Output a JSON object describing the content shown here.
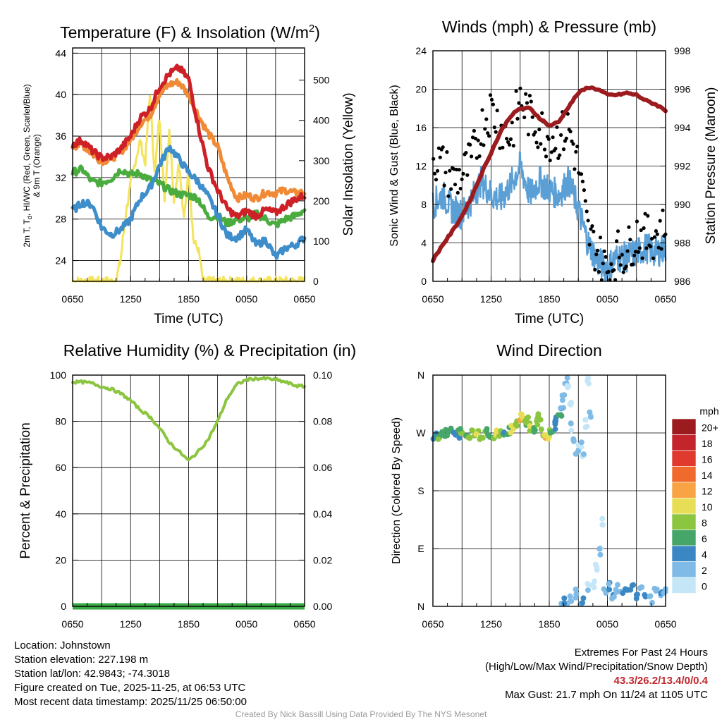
{
  "colors": {
    "red": "#cd2027",
    "orange": "#f08a36",
    "green": "#4aac3e",
    "blue": "#3d8ecb",
    "yellow": "#f4e35c",
    "maroon": "#9b1b1f",
    "black": "#000000",
    "sonic_blue": "#5a9fd6",
    "rh_green": "#8cc540",
    "precip_green": "#3aa845"
  },
  "time_ticks": [
    "0650",
    "1250",
    "1850",
    "0050",
    "0650"
  ],
  "charts": [
    {
      "id": "temperature",
      "title_main": "Temperature (F) & Insolation (W/m",
      "title_sup": "2",
      "title_end": ")",
      "ylabel_left_lines": [
        "2m T, T",
        "d",
        ", HI/WC (Red, Green, Scarlet/Blue)",
        "& 9m T (Orange)"
      ],
      "ylabel_right": "Solar Insolation (Yellow)",
      "xlabel": "Time (UTC)",
      "left_ticks": [
        "24",
        "28",
        "32",
        "36",
        "40",
        "44"
      ],
      "right_ticks": [
        "0",
        "100",
        "200",
        "300",
        "400",
        "500"
      ]
    },
    {
      "id": "winds",
      "title": "Winds (mph) & Pressure (mb)",
      "ylabel_left": "Sonic Wind & Gust (Blue, Black)",
      "ylabel_right": "Station Pressure (Maroon)",
      "xlabel": "Time (UTC)",
      "left_ticks": [
        "0",
        "4",
        "8",
        "12",
        "16",
        "20",
        "24"
      ],
      "right_ticks": [
        "986",
        "988",
        "990",
        "992",
        "994",
        "996",
        "998"
      ]
    },
    {
      "id": "humidity",
      "title": "Relative Humidity (%) & Precipitation (in)",
      "ylabel_left": "Percent & Precipitation",
      "left_ticks": [
        "0",
        "20",
        "40",
        "60",
        "80",
        "100"
      ],
      "right_ticks": [
        "0.00",
        "0.02",
        "0.04",
        "0.06",
        "0.08",
        "0.10"
      ]
    },
    {
      "id": "direction",
      "title": "Wind Direction",
      "ylabel_left": "Direction (Colored By Speed)",
      "dir_ticks": [
        "N",
        "E",
        "S",
        "W",
        "N"
      ],
      "legend_title": "mph",
      "legend_labels": [
        "20+",
        "18",
        "16",
        "14",
        "12",
        "10",
        "8",
        "6",
        "4",
        "2",
        "0"
      ],
      "legend_colors": [
        "#9b1b1f",
        "#c4242b",
        "#e0392d",
        "#f06a2e",
        "#f9a444",
        "#e8de55",
        "#8cc540",
        "#46a66a",
        "#3a87c4",
        "#7fbbe6",
        "#c5e6f7"
      ]
    }
  ],
  "chart_data": [
    {
      "type": "line",
      "title": "Temperature (F) & Insolation (W/m2)",
      "xlabel": "Time (UTC)",
      "ylabel": "2m T, Td, HI/WC (Red, Green, Scarlet/Blue) & 9m T (Orange)",
      "ylabel_right": "Solar Insolation (Yellow)",
      "x_hours": [
        0,
        1,
        2,
        3,
        4,
        5,
        6,
        7,
        8,
        9,
        10,
        11,
        12,
        13,
        14,
        15,
        16,
        17,
        18,
        19,
        20,
        21,
        22,
        23,
        24
      ],
      "ylim": [
        22,
        44.5
      ],
      "ylim_right": [
        0,
        580
      ],
      "series": [
        {
          "name": "2m T",
          "color": "red",
          "values": [
            35.2,
            35.6,
            34.6,
            33.9,
            34.0,
            34.8,
            36.0,
            37.8,
            38.6,
            40.8,
            42.0,
            42.6,
            41.5,
            37.0,
            33.0,
            30.8,
            29.0,
            28.2,
            28.8,
            28.3,
            28.9,
            28.6,
            29.3,
            29.9,
            30.3
          ]
        },
        {
          "name": "9m T",
          "color": "orange",
          "values": [
            35.0,
            35.2,
            34.3,
            33.6,
            33.8,
            34.5,
            35.6,
            37.2,
            38.0,
            40.0,
            41.0,
            41.2,
            40.0,
            38.0,
            36.3,
            35.0,
            32.0,
            30.0,
            30.3,
            30.0,
            30.6,
            30.5,
            30.8,
            30.5,
            30.6
          ]
        },
        {
          "name": "Td",
          "color": "green",
          "values": [
            32.5,
            32.8,
            31.6,
            31.5,
            31.9,
            32.8,
            32.3,
            32.4,
            31.8,
            31.4,
            30.8,
            30.4,
            30.3,
            30.0,
            28.2,
            28.3,
            27.6,
            28.0,
            28.0,
            28.5,
            28.0,
            27.4,
            28.0,
            28.3,
            28.9
          ]
        },
        {
          "name": "HI/WC",
          "color": "blue",
          "values": [
            28.8,
            29.6,
            29.4,
            27.2,
            26.5,
            27.0,
            28.0,
            30.0,
            31.0,
            33.2,
            35.0,
            33.8,
            32.5,
            31.6,
            30.2,
            28.4,
            26.4,
            26.2,
            27.0,
            25.5,
            26.0,
            24.3,
            25.2,
            25.5,
            26.2
          ]
        },
        {
          "name": "Solar Insolation",
          "color": "yellow",
          "axis": "right",
          "x_hours": [
            0,
            2,
            3.5,
            4.5,
            5,
            5.5,
            6,
            6.5,
            7,
            7.5,
            8,
            8.5,
            9,
            9.5,
            10,
            10.5,
            11,
            11.5,
            12,
            12.5,
            13,
            13.5,
            14,
            16,
            20,
            24
          ],
          "values": [
            0,
            0,
            0,
            0,
            60,
            170,
            240,
            300,
            350,
            290,
            470,
            260,
            420,
            200,
            380,
            200,
            300,
            150,
            280,
            100,
            80,
            0,
            0,
            0,
            0,
            0
          ]
        }
      ]
    },
    {
      "type": "line",
      "title": "Winds (mph) & Pressure (mb)",
      "xlabel": "Time (UTC)",
      "ylabel": "Sonic Wind & Gust (Blue, Black)",
      "ylabel_right": "Station Pressure (Maroon)",
      "x_hours": [
        0,
        1,
        2,
        3,
        4,
        5,
        6,
        7,
        8,
        9,
        10,
        11,
        12,
        13,
        14,
        15,
        16,
        17,
        18,
        19,
        20,
        21,
        22,
        23,
        24
      ],
      "ylim": [
        0,
        24
      ],
      "ylim_right": [
        986,
        998
      ],
      "series": [
        {
          "name": "Sonic Wind",
          "color": "sonic_blue",
          "values": [
            8.0,
            9.0,
            7.5,
            7.0,
            8.5,
            10.5,
            9.0,
            8.5,
            10.0,
            12.0,
            9.0,
            10.5,
            9.5,
            9.0,
            10.5,
            7.5,
            4.0,
            2.0,
            1.5,
            2.5,
            2.5,
            3.0,
            3.5,
            3.0,
            3.5
          ]
        },
        {
          "name": "Gust",
          "color": "black",
          "type": "scatter",
          "values": [
            13.0,
            12.0,
            10.5,
            11.0,
            12.5,
            16.0,
            18.0,
            16.0,
            15.0,
            19.0,
            17.0,
            16.0,
            15.0,
            15.0,
            16.0,
            12.0,
            5.0,
            3.0,
            1.0,
            3.0,
            3.0,
            5.0,
            4.5,
            5.0,
            5.5
          ]
        },
        {
          "name": "Station Pressure",
          "color": "maroon",
          "axis": "right",
          "values": [
            987.1,
            987.9,
            988.6,
            989.4,
            990.4,
            991.6,
            992.7,
            993.8,
            994.6,
            995.0,
            995.0,
            994.5,
            994.1,
            994.3,
            995.1,
            995.8,
            996.1,
            996.0,
            995.7,
            995.7,
            995.8,
            995.7,
            995.4,
            995.2,
            994.9
          ]
        }
      ]
    },
    {
      "type": "line",
      "title": "Relative Humidity (%) & Precipitation (in)",
      "xlabel": "",
      "ylabel": "Percent & Precipitation",
      "x_hours": [
        0,
        1,
        2,
        3,
        4,
        5,
        6,
        7,
        8,
        9,
        10,
        11,
        12,
        13,
        14,
        15,
        16,
        17,
        18,
        19,
        20,
        21,
        22,
        23,
        24
      ],
      "ylim": [
        0,
        100
      ],
      "ylim_right": [
        0,
        0.1
      ],
      "series": [
        {
          "name": "Relative Humidity",
          "color": "rh_green",
          "values": [
            97,
            97,
            96.5,
            95,
            94,
            92,
            89,
            85,
            82,
            77,
            71,
            67,
            63,
            67,
            72,
            80,
            90,
            96,
            98,
            98.5,
            98.5,
            98,
            97,
            95.5,
            95
          ]
        },
        {
          "name": "Precipitation",
          "color": "precip_green",
          "axis": "right",
          "values": [
            0,
            0,
            0,
            0,
            0,
            0,
            0,
            0,
            0,
            0,
            0,
            0,
            0,
            0,
            0,
            0,
            0,
            0,
            0,
            0,
            0,
            0,
            0,
            0,
            0
          ]
        }
      ]
    },
    {
      "type": "scatter",
      "title": "Wind Direction",
      "ylabel": "Direction (Colored By Speed)",
      "ylim": [
        0,
        360
      ],
      "y_ticks": [
        "N",
        "E",
        "S",
        "W",
        "N"
      ],
      "colorbar": {
        "label": "mph",
        "levels": [
          0,
          2,
          4,
          6,
          8,
          10,
          12,
          14,
          16,
          18,
          20
        ]
      },
      "points": [
        {
          "t": 0.2,
          "d": 265,
          "s": 6
        },
        {
          "t": 0.6,
          "d": 264,
          "s": 8
        },
        {
          "t": 1.0,
          "d": 266,
          "s": 7
        },
        {
          "t": 1.4,
          "d": 270,
          "s": 6
        },
        {
          "t": 1.8,
          "d": 275,
          "s": 7
        },
        {
          "t": 2.2,
          "d": 272,
          "s": 5
        },
        {
          "t": 2.6,
          "d": 268,
          "s": 6
        },
        {
          "t": 3.0,
          "d": 270,
          "s": 8
        },
        {
          "t": 3.4,
          "d": 265,
          "s": 7
        },
        {
          "t": 3.8,
          "d": 260,
          "s": 9
        },
        {
          "t": 4.2,
          "d": 268,
          "s": 8
        },
        {
          "t": 4.6,
          "d": 270,
          "s": 10
        },
        {
          "t": 5.0,
          "d": 266,
          "s": 9
        },
        {
          "t": 5.4,
          "d": 270,
          "s": 8
        },
        {
          "t": 5.8,
          "d": 264,
          "s": 7
        },
        {
          "t": 6.2,
          "d": 262,
          "s": 8
        },
        {
          "t": 6.6,
          "d": 270,
          "s": 10
        },
        {
          "t": 7.0,
          "d": 268,
          "s": 9
        },
        {
          "t": 7.4,
          "d": 265,
          "s": 6
        },
        {
          "t": 7.8,
          "d": 272,
          "s": 7
        },
        {
          "t": 8.2,
          "d": 275,
          "s": 11
        },
        {
          "t": 8.6,
          "d": 282,
          "s": 9
        },
        {
          "t": 9.0,
          "d": 290,
          "s": 12
        },
        {
          "t": 9.2,
          "d": 298,
          "s": 11
        },
        {
          "t": 9.5,
          "d": 285,
          "s": 8
        },
        {
          "t": 9.8,
          "d": 292,
          "s": 9
        },
        {
          "t": 10.1,
          "d": 280,
          "s": 10
        },
        {
          "t": 10.4,
          "d": 272,
          "s": 7
        },
        {
          "t": 10.7,
          "d": 286,
          "s": 9
        },
        {
          "t": 11.0,
          "d": 295,
          "s": 8
        },
        {
          "t": 11.3,
          "d": 270,
          "s": 9
        },
        {
          "t": 11.6,
          "d": 268,
          "s": 12
        },
        {
          "t": 11.9,
          "d": 262,
          "s": 11
        },
        {
          "t": 12.2,
          "d": 275,
          "s": 8
        },
        {
          "t": 12.5,
          "d": 282,
          "s": 6
        },
        {
          "t": 12.8,
          "d": 290,
          "s": 5
        },
        {
          "t": 13.1,
          "d": 300,
          "s": 6
        },
        {
          "t": 13.3,
          "d": 310,
          "s": 4
        },
        {
          "t": 13.5,
          "d": 328,
          "s": 3
        },
        {
          "t": 13.7,
          "d": 350,
          "s": 2
        },
        {
          "t": 14.0,
          "d": 340,
          "s": 1
        },
        {
          "t": 14.2,
          "d": 320,
          "s": 1
        },
        {
          "t": 14.4,
          "d": 280,
          "s": 2
        },
        {
          "t": 14.6,
          "d": 255,
          "s": 3
        },
        {
          "t": 14.9,
          "d": 238,
          "s": 3
        },
        {
          "t": 15.2,
          "d": 250,
          "s": 2
        },
        {
          "t": 15.5,
          "d": 232,
          "s": 2
        },
        {
          "t": 15.8,
          "d": 285,
          "s": 1
        },
        {
          "t": 16.0,
          "d": 348,
          "s": 1
        },
        {
          "t": 16.2,
          "d": 300,
          "s": 2
        },
        {
          "t": 13.4,
          "d": 5,
          "s": 3
        },
        {
          "t": 13.7,
          "d": 10,
          "s": 4
        },
        {
          "t": 14.2,
          "d": 12,
          "s": 3
        },
        {
          "t": 14.8,
          "d": 20,
          "s": 3
        },
        {
          "t": 15.4,
          "d": 8,
          "s": 4
        },
        {
          "t": 16.0,
          "d": 30,
          "s": 2
        },
        {
          "t": 16.6,
          "d": 35,
          "s": 1
        },
        {
          "t": 16.9,
          "d": 60,
          "s": 2
        },
        {
          "t": 17.2,
          "d": 85,
          "s": 2
        },
        {
          "t": 17.5,
          "d": 130,
          "s": 1
        },
        {
          "t": 17.8,
          "d": 25,
          "s": 3
        },
        {
          "t": 18.2,
          "d": 30,
          "s": 4
        },
        {
          "t": 18.6,
          "d": 15,
          "s": 4
        },
        {
          "t": 19.0,
          "d": 28,
          "s": 3
        },
        {
          "t": 19.5,
          "d": 18,
          "s": 4
        },
        {
          "t": 20.0,
          "d": 22,
          "s": 5
        },
        {
          "t": 20.5,
          "d": 28,
          "s": 4
        },
        {
          "t": 21.0,
          "d": 18,
          "s": 5
        },
        {
          "t": 21.5,
          "d": 25,
          "s": 4
        },
        {
          "t": 22.0,
          "d": 20,
          "s": 5
        },
        {
          "t": 22.5,
          "d": 12,
          "s": 4
        },
        {
          "t": 23.0,
          "d": 24,
          "s": 3
        },
        {
          "t": 23.5,
          "d": 20,
          "s": 4
        },
        {
          "t": 23.9,
          "d": 26,
          "s": 3
        }
      ]
    }
  ],
  "info": {
    "location": "Location: Johnstown",
    "elevation": "Station elevation: 227.198 m",
    "latlon": "Station lat/lon: 42.9843; -74.3018",
    "created": "Figure created on Tue, 2025-11-25, at 06:53 UTC",
    "recent": "Most recent data timestamp: 2025/11/25 06:50:00"
  },
  "extremes": {
    "title": "Extremes For Past 24 Hours",
    "legend": "(High/Low/Max Wind/Precipitation/Snow Depth)",
    "values": "43.3/26.2/13.4/0/0.4",
    "gust": "Max Gust: 21.7 mph On 11/24 at 1105 UTC"
  },
  "credit": "Created By Nick Bassill Using Data Provided By The NYS Mesonet"
}
